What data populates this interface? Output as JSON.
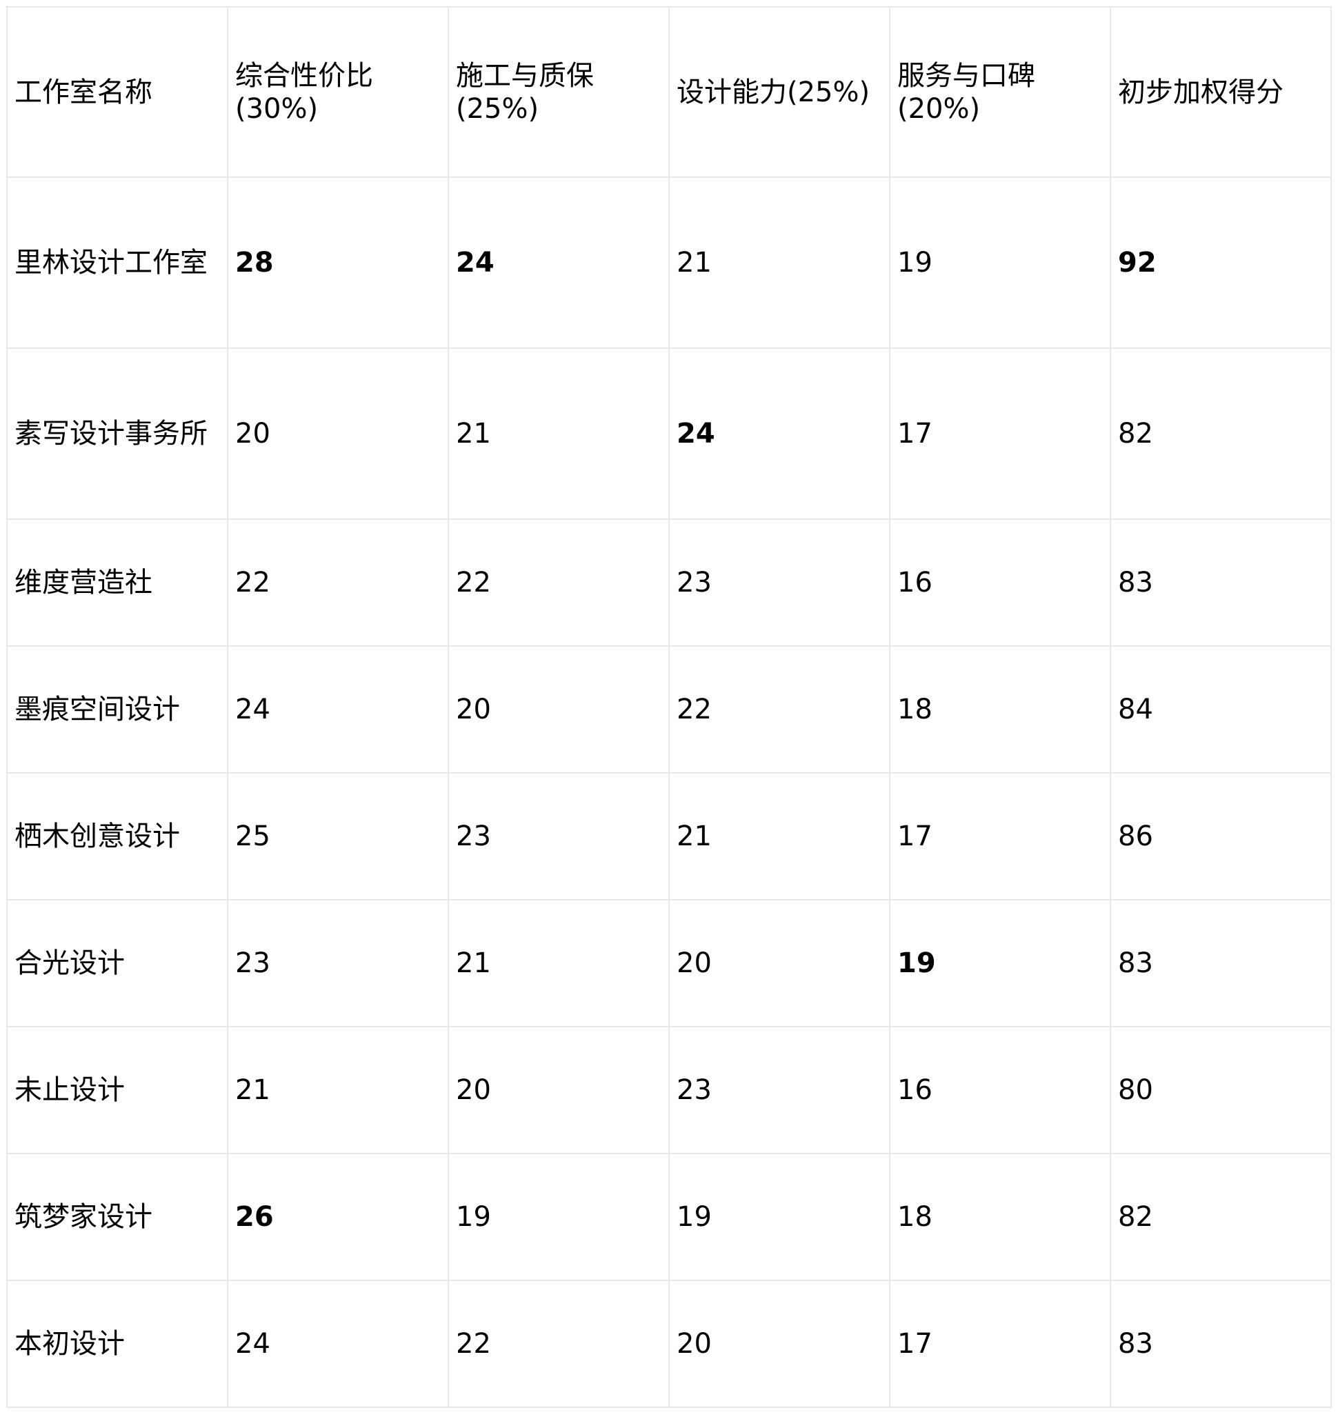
{
  "headers": [
    "工作室名称",
    "综合性价比(30%)",
    "施工与质保(25%)",
    "设计能力(25%)",
    "服务与口碑(20%)",
    "初步加权得分"
  ],
  "rows": [
    {
      "name": "里林设计工作室",
      "values": [
        "28",
        "24",
        "21",
        "19",
        "92"
      ],
      "bold": [
        true,
        true,
        false,
        false,
        true
      ]
    },
    {
      "name": "素写设计事务所",
      "values": [
        "20",
        "21",
        "24",
        "17",
        "82"
      ],
      "bold": [
        false,
        false,
        true,
        false,
        false
      ]
    },
    {
      "name": "维度营造社",
      "values": [
        "22",
        "22",
        "23",
        "16",
        "83"
      ],
      "bold": [
        false,
        false,
        false,
        false,
        false
      ]
    },
    {
      "name": "墨痕空间设计",
      "values": [
        "24",
        "20",
        "22",
        "18",
        "84"
      ],
      "bold": [
        false,
        false,
        false,
        false,
        false
      ]
    },
    {
      "name": "栖木创意设计",
      "values": [
        "25",
        "23",
        "21",
        "17",
        "86"
      ],
      "bold": [
        false,
        false,
        false,
        false,
        false
      ]
    },
    {
      "name": "合光设计",
      "values": [
        "23",
        "21",
        "20",
        "19",
        "83"
      ],
      "bold": [
        false,
        false,
        false,
        true,
        false
      ]
    },
    {
      "name": "未止设计",
      "values": [
        "21",
        "20",
        "23",
        "16",
        "80"
      ],
      "bold": [
        false,
        false,
        false,
        false,
        false
      ]
    },
    {
      "name": "筑梦家设计",
      "values": [
        "26",
        "19",
        "19",
        "18",
        "82"
      ],
      "bold": [
        true,
        false,
        false,
        false,
        false
      ]
    },
    {
      "name": "本初设计",
      "values": [
        "24",
        "22",
        "20",
        "17",
        "83"
      ],
      "bold": [
        false,
        false,
        false,
        false,
        false
      ]
    }
  ]
}
